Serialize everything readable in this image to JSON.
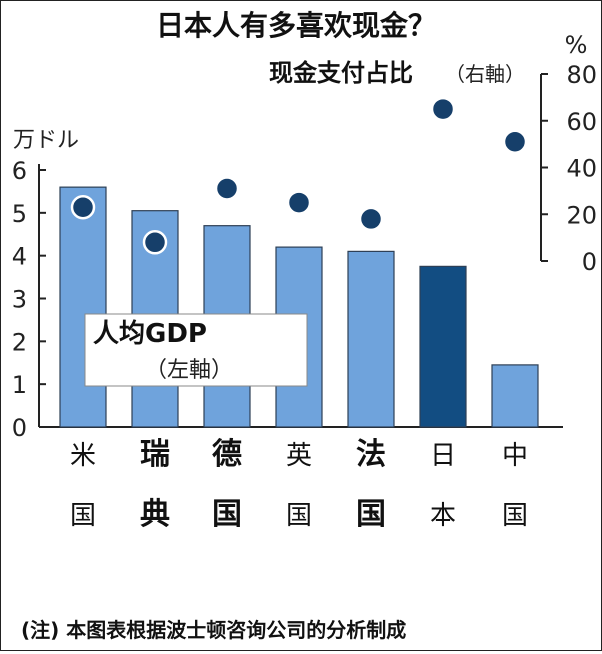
{
  "title": "日本人有多喜欢现金？",
  "footnote": "(注) 本图表根据波士顿咨询公司的分析制成",
  "colors": {
    "bar": "#6fa3dc",
    "bar_highlight": "#124d82",
    "dot": "#163f6a",
    "axis": "#222222",
    "text": "#222222"
  },
  "chart_data": {
    "type": "bar",
    "categories": [
      {
        "lines": [
          "米",
          "国"
        ],
        "bold": false
      },
      {
        "lines": [
          "瑞",
          "典"
        ],
        "bold": true
      },
      {
        "lines": [
          "德",
          "国"
        ],
        "bold": true
      },
      {
        "lines": [
          "英",
          "国"
        ],
        "bold": false
      },
      {
        "lines": [
          "法",
          "国"
        ],
        "bold": true
      },
      {
        "lines": [
          "日",
          "本"
        ],
        "bold": false
      },
      {
        "lines": [
          "中",
          "国"
        ],
        "bold": false
      }
    ],
    "series": [
      {
        "name": "人均GDP",
        "name_note": "（左軸）",
        "axis": "left",
        "kind": "bar",
        "values": [
          5.6,
          5.05,
          4.7,
          4.2,
          4.1,
          3.75,
          1.45
        ],
        "highlight_index": 5
      },
      {
        "name": "现金支付占比",
        "name_note": "（右軸）",
        "axis": "right",
        "kind": "dot",
        "values": [
          23,
          8,
          31,
          25,
          18,
          65,
          51
        ]
      }
    ],
    "left_axis": {
      "unit": "万ドル",
      "min": 0,
      "max": 6,
      "ticks": [
        0,
        1,
        2,
        3,
        4,
        5,
        6
      ]
    },
    "right_axis": {
      "unit": "%",
      "min": 0,
      "max": 80,
      "ticks": [
        0,
        20,
        40,
        60,
        80
      ]
    },
    "grid": false
  }
}
